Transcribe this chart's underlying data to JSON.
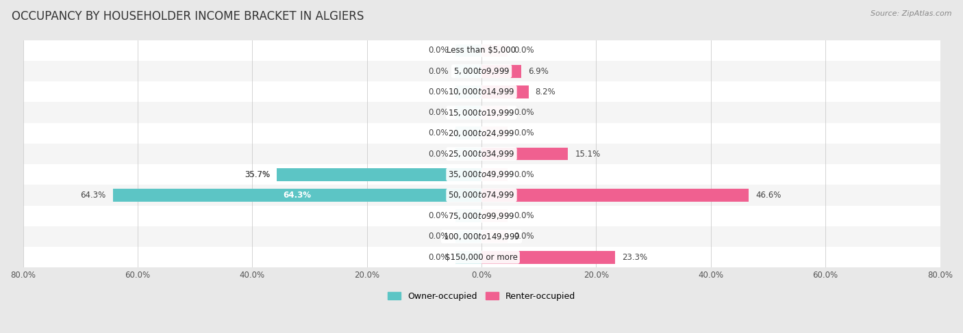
{
  "title": "OCCUPANCY BY HOUSEHOLDER INCOME BRACKET IN ALGIERS",
  "source": "Source: ZipAtlas.com",
  "categories": [
    "Less than $5,000",
    "$5,000 to $9,999",
    "$10,000 to $14,999",
    "$15,000 to $19,999",
    "$20,000 to $24,999",
    "$25,000 to $34,999",
    "$35,000 to $49,999",
    "$50,000 to $74,999",
    "$75,000 to $99,999",
    "$100,000 to $149,999",
    "$150,000 or more"
  ],
  "owner_values": [
    0.0,
    0.0,
    0.0,
    0.0,
    0.0,
    0.0,
    35.7,
    64.3,
    0.0,
    0.0,
    0.0
  ],
  "renter_values": [
    0.0,
    6.9,
    8.2,
    0.0,
    0.0,
    15.1,
    0.0,
    46.6,
    0.0,
    0.0,
    23.3
  ],
  "owner_color_full": "#5CC5C5",
  "owner_color_stub": "#A8DEDE",
  "renter_color_full": "#F06090",
  "renter_color_stub": "#F8BBCC",
  "stub_size": 4.5,
  "axis_max": 80.0,
  "background_color": "#e8e8e8",
  "row_bg_color": "#f5f5f5",
  "row_bg_even": "#ffffff",
  "bar_height": 0.62,
  "title_fontsize": 12,
  "label_fontsize": 8.5,
  "tick_fontsize": 8.5,
  "category_fontsize": 8.5,
  "legend_fontsize": 9
}
